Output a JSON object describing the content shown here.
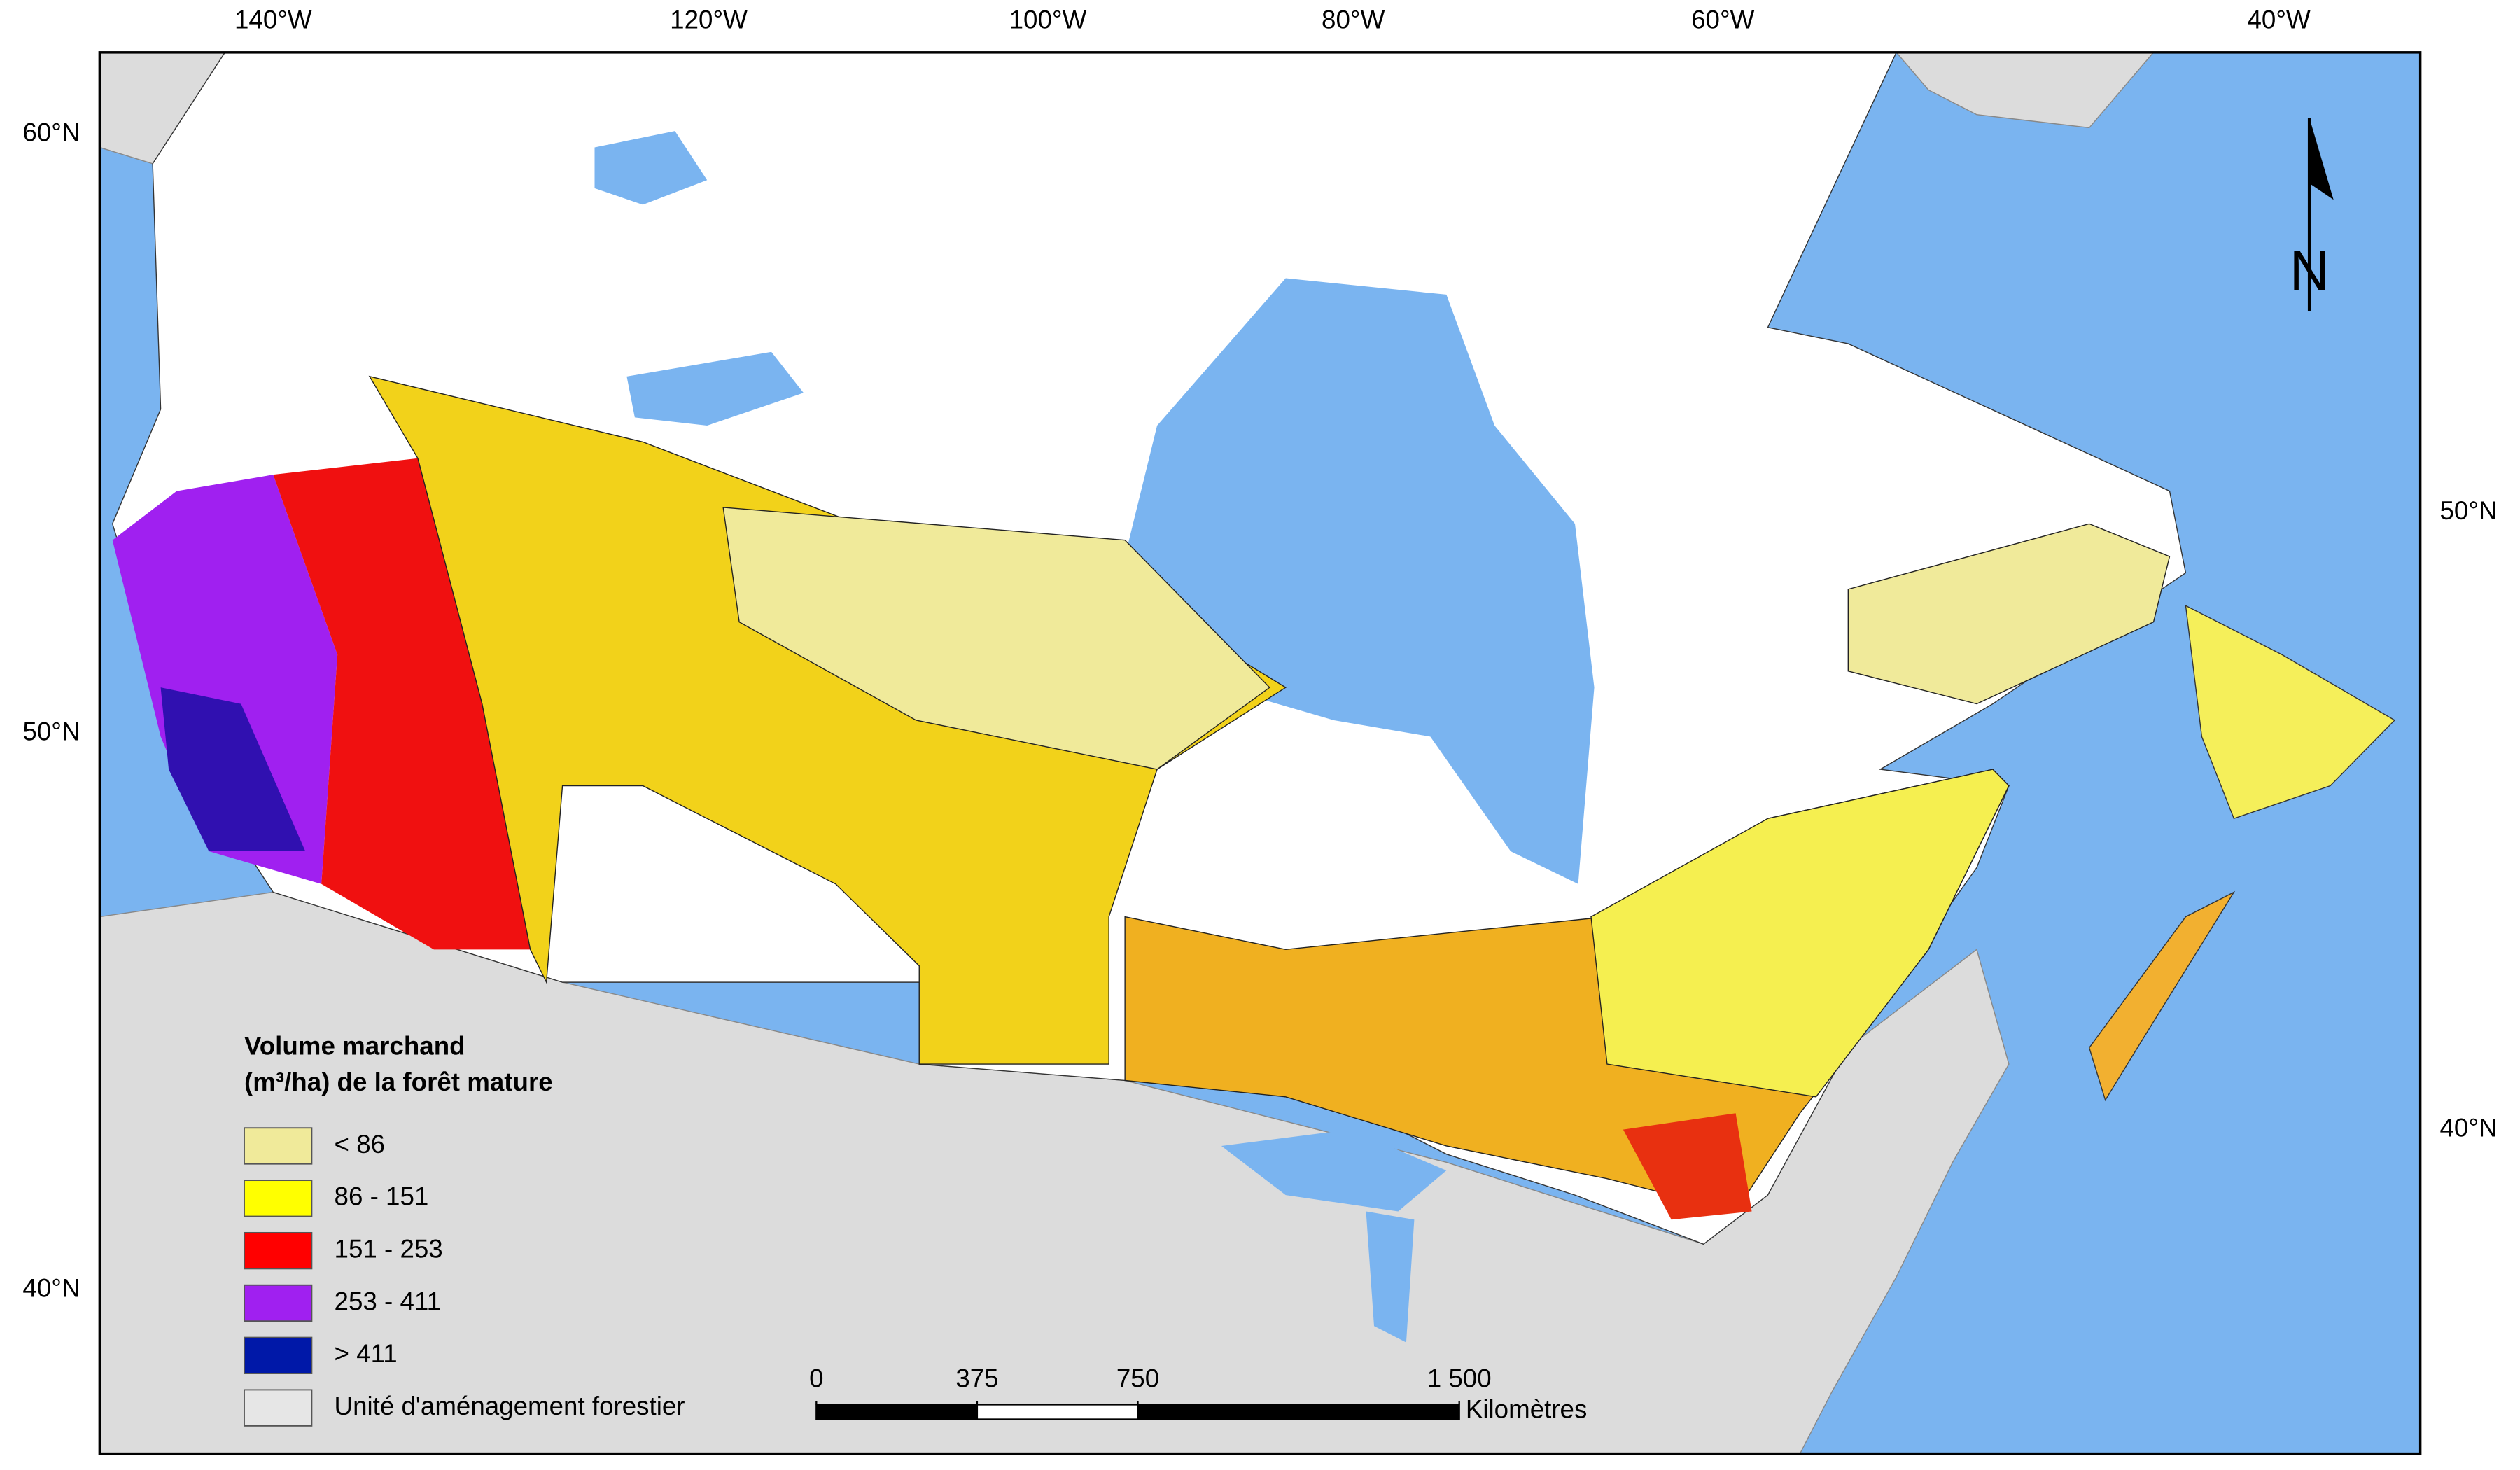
{
  "map": {
    "longitude_labels": [
      "140°W",
      "120°W",
      "100°W",
      "80°W",
      "60°W",
      "40°W"
    ],
    "latitude_labels_left": [
      "60°N",
      "50°N",
      "40°N"
    ],
    "latitude_labels_right": [
      "50°N",
      "40°N"
    ],
    "north_label": "N",
    "legend": {
      "title": [
        "Volume marchand",
        "(m³/ha) de la forêt mature"
      ],
      "items": [
        {
          "label": "< 86",
          "color": "#f0ea9a"
        },
        {
          "label": "86 - 151",
          "color": "#ffff00"
        },
        {
          "label": "151 - 253",
          "color": "#ff0000"
        },
        {
          "label": "253 - 411",
          "color": "#a020f0"
        },
        {
          "label": "> 411",
          "color": "#0018a8"
        },
        {
          "label": "Unité d'aménagement forestier",
          "color": "#e6e6e6"
        }
      ]
    },
    "scale_bar": {
      "ticks": [
        0,
        375,
        750,
        {
          "value": 1500,
          "label": "1 500"
        }
      ],
      "unit": "Kilomètres"
    }
  }
}
